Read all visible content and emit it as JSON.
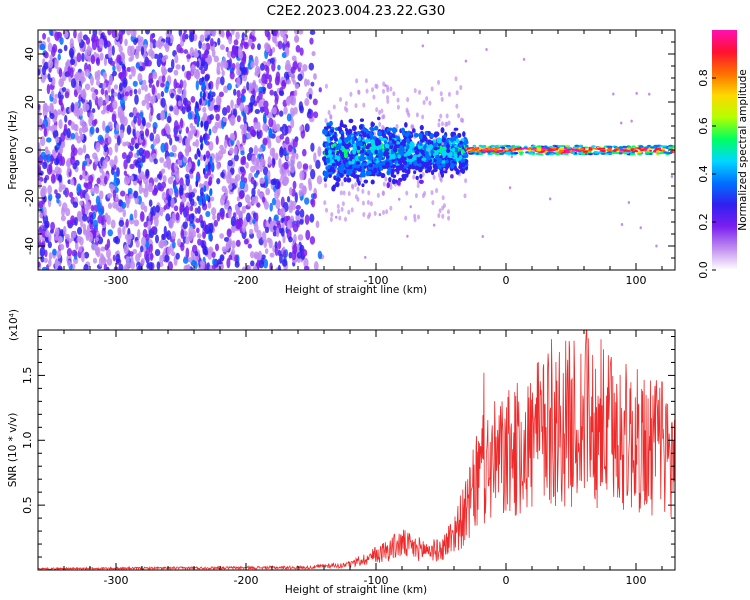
{
  "title": "C2E2.2023.004.23.22.G30",
  "chart_data": [
    {
      "type": "heatmap",
      "xlabel": "Height of straight line (km)",
      "ylabel": "Frequency (Hz)",
      "xlim": [
        -360,
        130
      ],
      "ylim": [
        -50,
        50
      ],
      "xticks": [
        -300,
        -200,
        -100,
        0,
        100
      ],
      "yticks": [
        -40,
        -20,
        0,
        20,
        40
      ],
      "colorbar": {
        "label": "Normalized spectral amplitude",
        "range": [
          0.0,
          1.0
        ],
        "ticks": [
          0.0,
          0.2,
          0.4,
          0.6,
          0.8
        ],
        "colors": [
          "#ffffff",
          "#c08cf0",
          "#7a1ff0",
          "#3020f0",
          "#0070ff",
          "#00d8ff",
          "#00ff60",
          "#b4ff00",
          "#ffd800",
          "#ff7000",
          "#ff1030",
          "#ff10b0"
        ]
      },
      "regions": [
        {
          "x_range": [
            -360,
            -140
          ],
          "freq_range": [
            -50,
            50
          ],
          "amplitude": "0.05-0.3 (broadband noise)"
        },
        {
          "x_range": [
            -140,
            -30
          ],
          "freq_range": [
            -15,
            15
          ],
          "amplitude": "0.2-0.55"
        },
        {
          "x_range": [
            -30,
            130
          ],
          "freq_range": [
            -2,
            2
          ],
          "amplitude": "0.7-1.0 (narrow line at 0 Hz)"
        }
      ]
    },
    {
      "type": "line",
      "xlabel": "Height of straight line (km)",
      "ylabel": "SNR (10 * v/v)",
      "y_multiplier": "(x10⁴)",
      "xlim": [
        -360,
        130
      ],
      "ylim": [
        0,
        1.85
      ],
      "xticks": [
        -300,
        -200,
        -100,
        0,
        100
      ],
      "yticks": [
        0.5,
        1.0,
        1.5
      ],
      "color": "#ee2a2a",
      "series_envelope": [
        {
          "x": -360,
          "y": 0.01
        },
        {
          "x": -150,
          "y": 0.02
        },
        {
          "x": -120,
          "y": 0.05
        },
        {
          "x": -100,
          "y": 0.14
        },
        {
          "x": -80,
          "y": 0.25
        },
        {
          "x": -70,
          "y": 0.2
        },
        {
          "x": -50,
          "y": 0.18
        },
        {
          "x": -40,
          "y": 0.35
        },
        {
          "x": -30,
          "y": 0.55
        },
        {
          "x": -20,
          "y": 0.9
        },
        {
          "x": -10,
          "y": 1.0
        },
        {
          "x": 0,
          "y": 1.05
        },
        {
          "x": 20,
          "y": 1.2
        },
        {
          "x": 40,
          "y": 1.35
        },
        {
          "x": 60,
          "y": 1.4
        },
        {
          "x": 80,
          "y": 1.3
        },
        {
          "x": 100,
          "y": 1.2
        },
        {
          "x": 120,
          "y": 1.1
        },
        {
          "x": 130,
          "y": 1.0
        }
      ],
      "peaks": [
        {
          "x": 62,
          "y": 1.85
        },
        {
          "x": 35,
          "y": 1.78
        },
        {
          "x": -17,
          "y": 1.52
        },
        {
          "x": 120,
          "y": 1.45
        }
      ]
    }
  ]
}
